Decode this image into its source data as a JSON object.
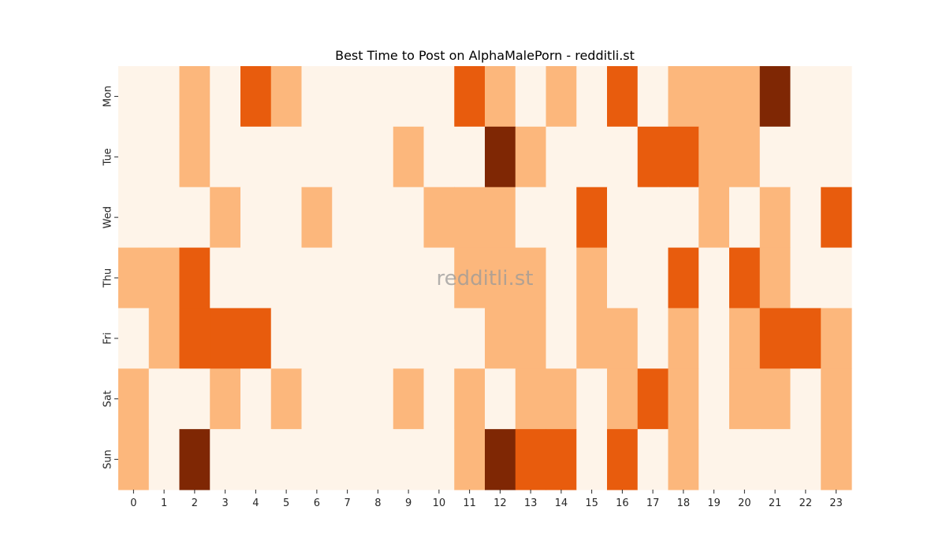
{
  "chart_data": {
    "type": "heatmap",
    "title": "Best Time to Post on AlphaMalePorn - redditli.st",
    "watermark": "redditli.st",
    "x_categories": [
      "0",
      "1",
      "2",
      "3",
      "4",
      "5",
      "6",
      "7",
      "8",
      "9",
      "10",
      "11",
      "12",
      "13",
      "14",
      "15",
      "16",
      "17",
      "18",
      "19",
      "20",
      "21",
      "22",
      "23"
    ],
    "y_categories": [
      "Mon",
      "Tue",
      "Wed",
      "Thu",
      "Fri",
      "Sat",
      "Sun"
    ],
    "xlabel": "",
    "ylabel": "",
    "colormap": "Oranges",
    "levels": [
      "#fef4e9",
      "#fcb77c",
      "#e85c0d",
      "#7f2704"
    ],
    "values": [
      [
        0,
        0,
        1,
        0,
        2,
        1,
        0,
        0,
        0,
        0,
        0,
        2,
        1,
        0,
        1,
        0,
        2,
        0,
        1,
        1,
        1,
        3,
        0,
        0
      ],
      [
        0,
        0,
        1,
        0,
        0,
        0,
        0,
        0,
        0,
        1,
        0,
        0,
        3,
        1,
        0,
        0,
        0,
        2,
        2,
        1,
        1,
        0,
        0,
        0
      ],
      [
        0,
        0,
        0,
        1,
        0,
        0,
        1,
        0,
        0,
        0,
        1,
        1,
        1,
        0,
        0,
        2,
        0,
        0,
        0,
        1,
        0,
        1,
        0,
        2
      ],
      [
        1,
        1,
        2,
        0,
        0,
        0,
        0,
        0,
        0,
        0,
        0,
        1,
        1,
        1,
        0,
        1,
        0,
        0,
        2,
        0,
        2,
        1,
        0,
        0
      ],
      [
        0,
        1,
        2,
        2,
        2,
        0,
        0,
        0,
        0,
        0,
        0,
        0,
        1,
        1,
        0,
        1,
        1,
        0,
        1,
        0,
        1,
        2,
        2,
        1
      ],
      [
        1,
        0,
        0,
        1,
        0,
        1,
        0,
        0,
        0,
        1,
        0,
        1,
        0,
        1,
        1,
        0,
        1,
        2,
        1,
        0,
        1,
        1,
        0,
        1
      ],
      [
        1,
        0,
        3,
        0,
        0,
        0,
        0,
        0,
        0,
        0,
        0,
        1,
        3,
        2,
        2,
        0,
        2,
        0,
        1,
        0,
        0,
        0,
        0,
        1
      ]
    ]
  }
}
